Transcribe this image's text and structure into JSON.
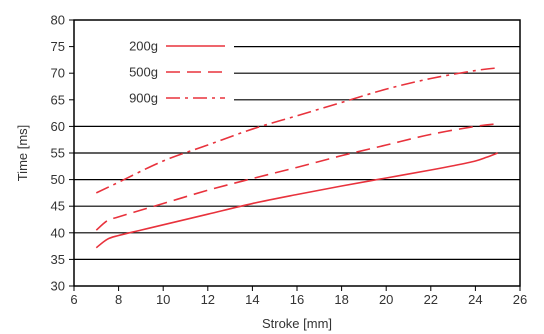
{
  "chart_data": {
    "type": "line",
    "title": "",
    "xlabel": "Stroke [mm]",
    "ylabel": "Time [ms]",
    "xlim": [
      6,
      26
    ],
    "ylim": [
      30,
      80
    ],
    "xticks": [
      6,
      8,
      10,
      12,
      14,
      16,
      18,
      20,
      22,
      24,
      26
    ],
    "yticks": [
      30,
      35,
      40,
      45,
      50,
      55,
      60,
      65,
      70,
      75,
      80
    ],
    "grid": "horizontal",
    "legend_position": "top-left",
    "line_color": "#e8323c",
    "series": [
      {
        "name": "200g",
        "dash": "solid",
        "x": [
          7,
          7.5,
          8,
          9,
          10,
          12,
          14,
          16,
          18,
          20,
          22,
          23,
          24,
          24.5,
          25
        ],
        "y": [
          37.2,
          38.8,
          39.5,
          40.5,
          41.5,
          43.5,
          45.5,
          47.2,
          48.8,
          50.3,
          51.8,
          52.6,
          53.5,
          54.2,
          55
        ]
      },
      {
        "name": "500g",
        "dash": "dashed",
        "x": [
          7,
          7.5,
          8,
          10,
          12,
          14,
          16,
          18,
          20,
          22,
          24,
          25
        ],
        "y": [
          40.5,
          42.3,
          43,
          45.5,
          48,
          50.2,
          52.3,
          54.5,
          56.5,
          58.5,
          60,
          60.5
        ]
      },
      {
        "name": "900g",
        "dash": "dash-dot",
        "x": [
          7,
          8,
          10,
          12,
          14,
          16,
          18,
          20,
          22,
          24,
          25
        ],
        "y": [
          47.5,
          49.5,
          53.5,
          56.5,
          59.5,
          62,
          64.5,
          67,
          69,
          70.5,
          71
        ]
      }
    ]
  }
}
